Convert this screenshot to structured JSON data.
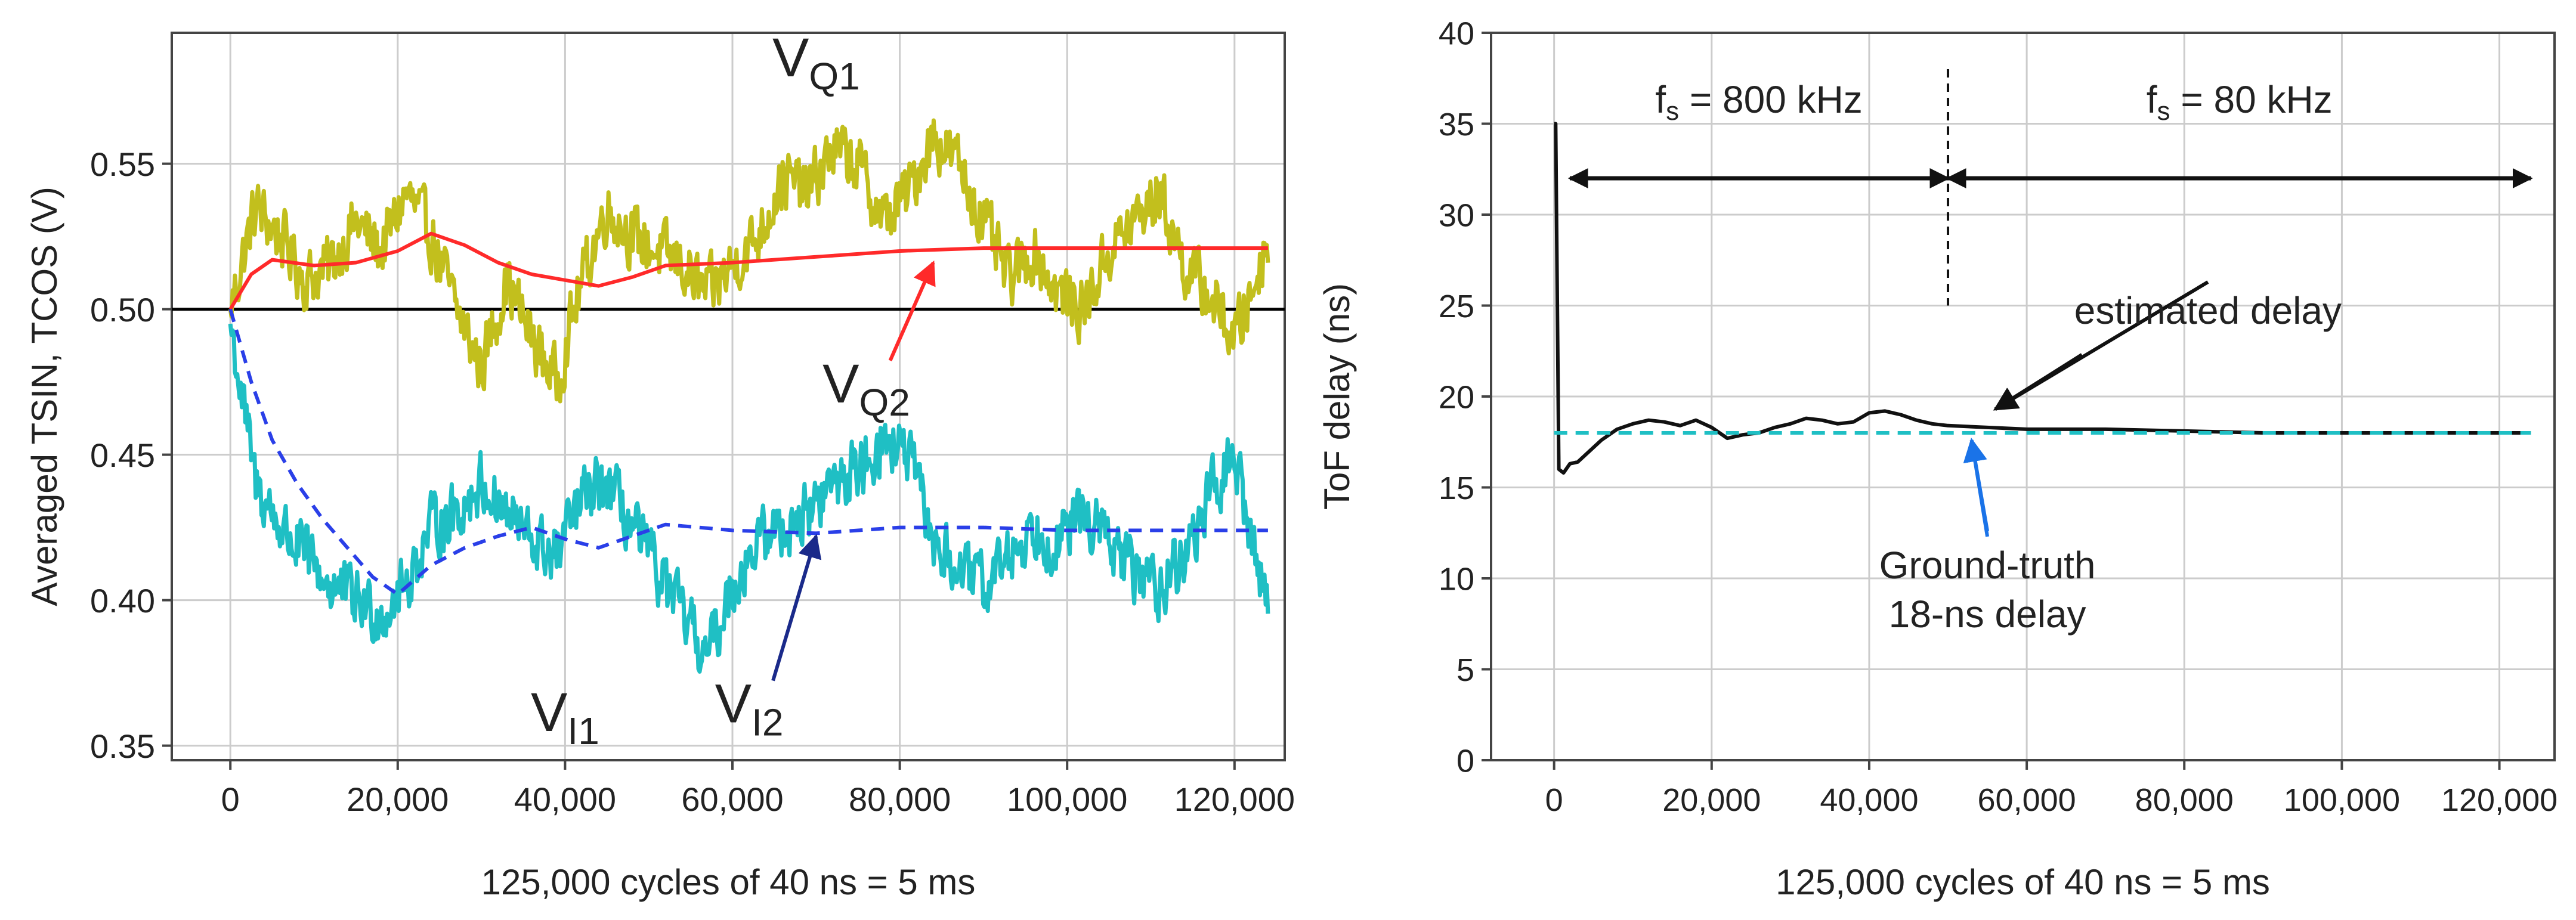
{
  "chart_data": [
    {
      "type": "line",
      "title": "",
      "xlabel": "125,000 cycles of 40 ns = 5 ms",
      "ylabel": "Averaged TSIN, TCOS (V)",
      "xlim": [
        -7000,
        126000
      ],
      "ylim": [
        0.345,
        0.595
      ],
      "grid": true,
      "xticks": [
        0,
        20000,
        40000,
        60000,
        80000,
        100000,
        120000
      ],
      "xtick_labels": [
        "0",
        "20,000",
        "40,000",
        "60,000",
        "80,000",
        "100,000",
        "120,000"
      ],
      "yticks": [
        0.35,
        0.4,
        0.45,
        0.5,
        0.55
      ],
      "ytick_labels": [
        "0.35",
        "0.40",
        "0.45",
        "0.50",
        "0.55"
      ],
      "reference_line": {
        "y": 0.5,
        "color": "#000000"
      },
      "series": [
        {
          "name": "VQ1",
          "color": "#c2bf1d",
          "style": "noisy",
          "x": [
            0,
            3000,
            6000,
            9000,
            12000,
            15000,
            18000,
            21000,
            24000,
            27000,
            30000,
            33000,
            36000,
            39000,
            42000,
            45000,
            48000,
            51000,
            54000,
            57000,
            60000,
            63000,
            66000,
            69000,
            72000,
            75000,
            78000,
            81000,
            84000,
            87000,
            90000,
            93000,
            96000,
            99000,
            102000,
            105000,
            108000,
            111000,
            114000,
            117000,
            120000,
            122000,
            124000
          ],
          "values": [
            0.5,
            0.535,
            0.525,
            0.51,
            0.515,
            0.53,
            0.52,
            0.54,
            0.525,
            0.5,
            0.48,
            0.51,
            0.49,
            0.475,
            0.51,
            0.535,
            0.525,
            0.52,
            0.515,
            0.505,
            0.515,
            0.525,
            0.545,
            0.54,
            0.555,
            0.55,
            0.53,
            0.54,
            0.56,
            0.55,
            0.53,
            0.51,
            0.52,
            0.505,
            0.5,
            0.52,
            0.53,
            0.54,
            0.515,
            0.505,
            0.49,
            0.505,
            0.525
          ]
        },
        {
          "name": "VQ2",
          "color": "#ff2a2a",
          "style": "solid",
          "x": [
            0,
            2500,
            5000,
            10000,
            15000,
            20000,
            24000,
            28000,
            32000,
            36000,
            40000,
            44000,
            48000,
            52000,
            60000,
            70000,
            80000,
            90000,
            100000,
            110000,
            124000
          ],
          "values": [
            0.5,
            0.512,
            0.517,
            0.515,
            0.516,
            0.52,
            0.526,
            0.522,
            0.516,
            0.512,
            0.51,
            0.508,
            0.511,
            0.515,
            0.516,
            0.518,
            0.52,
            0.521,
            0.521,
            0.521,
            0.521
          ]
        },
        {
          "name": "VI1",
          "color": "#1fbfc4",
          "style": "noisy",
          "x": [
            0,
            3000,
            6000,
            9000,
            12000,
            15000,
            18000,
            21000,
            24000,
            27000,
            30000,
            33000,
            36000,
            39000,
            42000,
            45000,
            48000,
            51000,
            54000,
            57000,
            60000,
            63000,
            66000,
            69000,
            72000,
            75000,
            78000,
            81000,
            84000,
            87000,
            90000,
            93000,
            96000,
            99000,
            102000,
            105000,
            108000,
            111000,
            114000,
            117000,
            120000,
            122000,
            124000
          ],
          "values": [
            0.495,
            0.44,
            0.425,
            0.415,
            0.405,
            0.4,
            0.395,
            0.405,
            0.425,
            0.43,
            0.44,
            0.43,
            0.42,
            0.415,
            0.435,
            0.44,
            0.425,
            0.41,
            0.395,
            0.38,
            0.405,
            0.42,
            0.425,
            0.43,
            0.44,
            0.445,
            0.455,
            0.45,
            0.42,
            0.41,
            0.405,
            0.415,
            0.425,
            0.42,
            0.43,
            0.42,
            0.41,
            0.405,
            0.415,
            0.435,
            0.45,
            0.42,
            0.4
          ]
        },
        {
          "name": "VI2",
          "color": "#2a3fe8",
          "style": "dashed",
          "x": [
            0,
            2500,
            5000,
            8000,
            11000,
            14000,
            17000,
            20000,
            24000,
            28000,
            32000,
            36000,
            40000,
            44000,
            48000,
            52000,
            60000,
            70000,
            80000,
            90000,
            100000,
            110000,
            124000
          ],
          "values": [
            0.5,
            0.475,
            0.455,
            0.44,
            0.428,
            0.418,
            0.408,
            0.402,
            0.412,
            0.418,
            0.422,
            0.425,
            0.421,
            0.418,
            0.422,
            0.426,
            0.424,
            0.423,
            0.425,
            0.425,
            0.424,
            0.424,
            0.424
          ]
        }
      ],
      "annotations": [
        {
          "id": "vq1",
          "main": "V",
          "sub": "Q1",
          "x": 70000,
          "y": 0.58
        },
        {
          "id": "vq2",
          "main": "V",
          "sub": "Q2",
          "x": 76000,
          "y": 0.468,
          "arrow_to": [
            84000,
            0.516
          ],
          "arrow_color": "#ff2a2a"
        },
        {
          "id": "vi1",
          "main": "V",
          "sub": "I1",
          "x": 40000,
          "y": 0.355
        },
        {
          "id": "vi2",
          "main": "V",
          "sub": "I2",
          "x": 62000,
          "y": 0.358,
          "arrow_to": [
            70000,
            0.422
          ],
          "arrow_color": "#1a2a8a"
        }
      ]
    },
    {
      "type": "line",
      "title": "",
      "xlabel": "125,000 cycles of 40 ns = 5 ms",
      "ylabel": "ToF delay (ns)",
      "xlim": [
        -8000,
        127000
      ],
      "ylim": [
        0,
        40
      ],
      "grid": true,
      "xticks": [
        0,
        20000,
        40000,
        60000,
        80000,
        100000,
        120000
      ],
      "xtick_labels": [
        "0",
        "20,000",
        "40,000",
        "60,000",
        "80,000",
        "100,000",
        "120,000"
      ],
      "yticks": [
        0,
        5,
        10,
        15,
        20,
        25,
        30,
        35,
        40
      ],
      "ytick_labels": [
        "0",
        "5",
        "10",
        "15",
        "20",
        "25",
        "30",
        "35",
        "40"
      ],
      "vertical_marker": {
        "x": 50000,
        "y_range": [
          25,
          38
        ],
        "style": "dashed"
      },
      "regions": [
        {
          "label_main": "f",
          "label_sub": "s",
          "label_rest": " = 800 kHz",
          "x_start": 2000,
          "x_end": 50000,
          "arrow_y": 32
        },
        {
          "label_main": "f",
          "label_sub": "s",
          "label_rest": " = 80 kHz",
          "x_start": 50000,
          "x_end": 124000,
          "arrow_y": 32
        }
      ],
      "series": [
        {
          "name": "estimated delay",
          "color": "#111111",
          "style": "solid",
          "x": [
            0,
            200,
            600,
            1200,
            2000,
            3000,
            4500,
            6000,
            8000,
            10000,
            12000,
            14000,
            16000,
            18000,
            20000,
            22000,
            24000,
            26000,
            28000,
            30000,
            32000,
            34000,
            36000,
            38000,
            40000,
            42000,
            44000,
            46000,
            48000,
            50000,
            55000,
            60000,
            70000,
            80000,
            90000,
            100000,
            110000,
            124000
          ],
          "values": [
            35.0,
            35.0,
            16.0,
            15.8,
            16.3,
            16.4,
            17.0,
            17.6,
            18.2,
            18.5,
            18.7,
            18.6,
            18.4,
            18.7,
            18.3,
            17.7,
            17.9,
            18.0,
            18.3,
            18.5,
            18.8,
            18.7,
            18.5,
            18.6,
            19.1,
            19.2,
            19.0,
            18.7,
            18.5,
            18.4,
            18.3,
            18.2,
            18.2,
            18.1,
            18.0,
            18.0,
            18.0,
            18.0
          ]
        },
        {
          "name": "Ground-truth 18-ns delay",
          "color": "#1fbfc4",
          "style": "dashed",
          "x": [
            0,
            124000
          ],
          "values": [
            18.0,
            18.0
          ]
        }
      ],
      "annotations": [
        {
          "id": "est",
          "text_lines": [
            "estimated delay"
          ],
          "x": 83000,
          "y": 24,
          "arrow_from": [
            67000,
            22.3
          ],
          "arrow_to": [
            56000,
            19.3
          ],
          "arrow_color": "#111111"
        },
        {
          "id": "gt",
          "text_lines": [
            "Ground-truth",
            "18-ns delay"
          ],
          "x": 55000,
          "y": 10,
          "arrow_from": [
            55000,
            12.6
          ],
          "arrow_to": [
            53000,
            17.6
          ],
          "arrow_color": "#1a73e8"
        }
      ]
    }
  ]
}
